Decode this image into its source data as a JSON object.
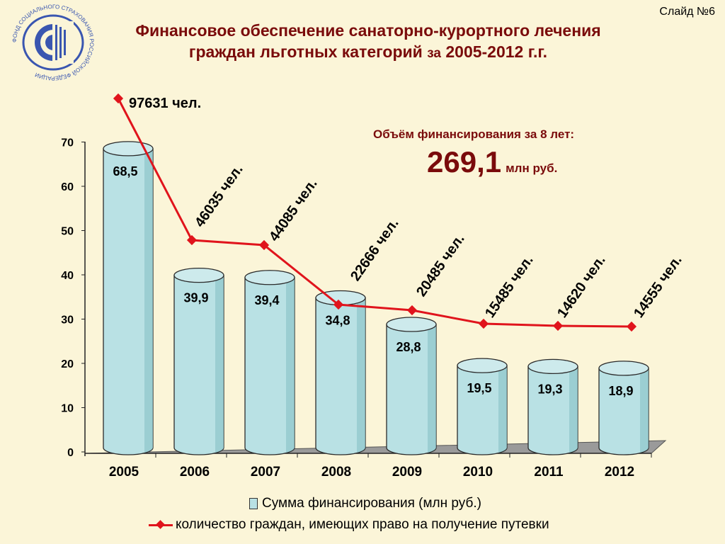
{
  "slide_label": "Слайд №6",
  "title": {
    "line1": "Финансовое обеспечение санаторно-курортного лечения",
    "line2_main": "граждан льготных категорий",
    "line2_za": "за",
    "line2_years": "2005-2012 г.г."
  },
  "logo": {
    "name": "fss-logo",
    "ring_text": "ФОНД СОЦИАЛЬНОГО СТРАХОВАНИЯ РОССИЙСКОЙ ФЕДЕРАЦИИ",
    "color": "#3a56b0"
  },
  "financing": {
    "label": "Объём финансирования за 8 лет:",
    "value": "269,1",
    "unit": "млн руб."
  },
  "legend": {
    "bars": "Сумма финансирования (млн руб.)",
    "line": "количество граждан, имеющих право на получение путевки"
  },
  "colors": {
    "title": "#7a0b0b",
    "bar_fill": "#b9e1e4",
    "line": "#e0141c",
    "floor": "#9a9a9a",
    "background": "#fbf5d8"
  },
  "chart_data": {
    "type": "bar",
    "categories": [
      "2005",
      "2006",
      "2007",
      "2008",
      "2009",
      "2010",
      "2011",
      "2012"
    ],
    "ylim": [
      0,
      70
    ],
    "yticks": [
      0,
      10,
      20,
      30,
      40,
      50,
      60,
      70
    ],
    "series": [
      {
        "type": "bar",
        "values": [
          68.5,
          39.9,
          39.4,
          34.8,
          28.8,
          19.5,
          19.3,
          18.9
        ],
        "labels": [
          "68,5",
          "39,9",
          "39,4",
          "34,8",
          "28,8",
          "19,5",
          "19,3",
          "18,9"
        ]
      },
      {
        "type": "line",
        "values": [
          97631,
          46035,
          44085,
          22666,
          20485,
          15485,
          14620,
          14555
        ],
        "labels": [
          "97631 чел.",
          "46035 чел.",
          "44085 чел.",
          "22666 чел.",
          "20485 чел.",
          "15485 чел.",
          "14620 чел.",
          "14555 чел."
        ]
      }
    ]
  }
}
